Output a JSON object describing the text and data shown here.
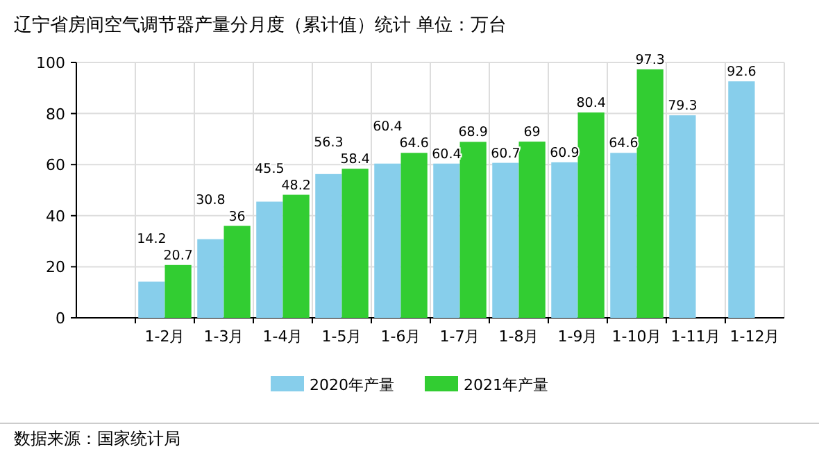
{
  "chart_data": {
    "type": "bar",
    "title": "辽宁省房间空气调节器产量分月度（累计值）统计  单位：万台",
    "categories": [
      "1-2月",
      "1-3月",
      "1-4月",
      "1-5月",
      "1-6月",
      "1-7月",
      "1-8月",
      "1-9月",
      "1-10月",
      "1-11月",
      "1-12月"
    ],
    "series": [
      {
        "name": "2020年产量",
        "color": "#87ceeb",
        "values": [
          14.2,
          30.8,
          45.5,
          56.3,
          60.4,
          60.4,
          60.7,
          60.9,
          64.6,
          79.3,
          92.6
        ]
      },
      {
        "name": "2021年产量",
        "color": "#32cd32",
        "values": [
          20.7,
          36,
          48.2,
          58.4,
          64.6,
          68.9,
          69,
          80.4,
          97.3,
          null,
          null
        ]
      }
    ],
    "ylim": [
      0,
      100
    ],
    "yticks": [
      0,
      20,
      40,
      60,
      80,
      100
    ],
    "grid": true,
    "legend": "bottom",
    "data_labels": true,
    "annotations": [
      "数据来源：国家统计局"
    ]
  }
}
